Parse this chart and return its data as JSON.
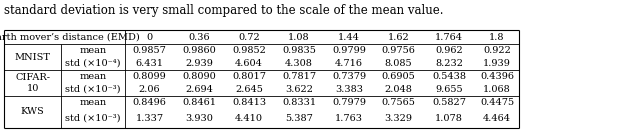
{
  "caption": "standard deviation is very small compared to the scale of the mean value.",
  "header_row": [
    "Earth mover’s distance (EMD)",
    "0",
    "0.36",
    "0.72",
    "1.08",
    "1.44",
    "1.62",
    "1.764",
    "1.8"
  ],
  "rows": [
    {
      "dataset": "MNIST",
      "row1_label": "mean",
      "row1_values": [
        "0.9857",
        "0.9860",
        "0.9852",
        "0.9835",
        "0.9799",
        "0.9756",
        "0.962",
        "0.922"
      ],
      "row2_label": "std (×10⁻⁴)",
      "row2_values": [
        "6.431",
        "2.939",
        "4.604",
        "4.308",
        "4.716",
        "8.085",
        "8.232",
        "1.939"
      ]
    },
    {
      "dataset": "CIFAR-\n10",
      "row1_label": "mean",
      "row1_values": [
        "0.8099",
        "0.8090",
        "0.8017",
        "0.7817",
        "0.7379",
        "0.6905",
        "0.5438",
        "0.4396"
      ],
      "row2_label": "std (×10⁻³)",
      "row2_values": [
        "2.06",
        "2.694",
        "2.645",
        "3.622",
        "3.383",
        "2.048",
        "9.655",
        "1.068"
      ]
    },
    {
      "dataset": "KWS",
      "row1_label": "mean",
      "row1_values": [
        "0.8496",
        "0.8461",
        "0.8413",
        "0.8331",
        "0.7979",
        "0.7565",
        "0.5827",
        "0.4475"
      ],
      "row2_label": "std (×10⁻³)",
      "row2_values": [
        "1.337",
        "3.930",
        "4.410",
        "5.387",
        "1.763",
        "3.329",
        "1.078",
        "4.464"
      ]
    }
  ],
  "bg_color": "#ffffff",
  "text_color": "#000000",
  "font_size": 7.0,
  "caption_font_size": 8.5,
  "fig_width": 6.4,
  "fig_height": 1.3,
  "dpi": 100
}
